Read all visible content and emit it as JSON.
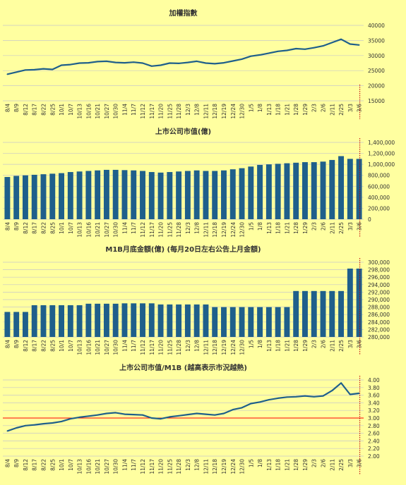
{
  "colors": {
    "background": "#ffffa0",
    "line": "#1f5f8b",
    "bar": "#1f5f8b",
    "grid": "#c8c8c8",
    "reference_line": "#ff0000",
    "event_line": "#c00000",
    "text": "#333333"
  },
  "x_tick_labels": [
    "8/4",
    "8/9",
    "8/12",
    "8/17",
    "8/22",
    "8/25",
    "10/1",
    "10/7",
    "10/13",
    "10/16",
    "10/21",
    "10/27",
    "10/30",
    "11/4",
    "11/7",
    "11/12",
    "11/17",
    "11/20",
    "11/25",
    "11/28",
    "12/3",
    "12/8",
    "12/11",
    "12/18",
    "12/19",
    "12/24",
    "12/30",
    "1/5",
    "1/8",
    "1/13",
    "1/18",
    "1/21",
    "1/28",
    "1/29",
    "2/3",
    "2/6",
    "2/11",
    "2/25",
    "3/3",
    "3/6"
  ],
  "chart_data": [
    {
      "type": "line",
      "title": "加權指數",
      "yticks": [
        "40000",
        "35000",
        "30000",
        "25000",
        "20000",
        "15000"
      ],
      "ylim": [
        15000,
        40000
      ],
      "grid": true,
      "x": [
        "8/4",
        "8/9",
        "8/12",
        "8/17",
        "8/22",
        "8/25",
        "10/1",
        "10/7",
        "10/13",
        "10/16",
        "10/21",
        "10/27",
        "10/30",
        "11/4",
        "11/7",
        "11/12",
        "11/17",
        "11/20",
        "11/25",
        "11/28",
        "12/3",
        "12/8",
        "12/11",
        "12/18",
        "12/19",
        "12/24",
        "12/30",
        "1/5",
        "1/8",
        "1/13",
        "1/18",
        "1/21",
        "1/28",
        "1/29",
        "2/3",
        "2/6",
        "2/11",
        "2/25",
        "3/3",
        "3/6"
      ],
      "values": [
        23800,
        24500,
        25200,
        25300,
        25600,
        25400,
        26800,
        27000,
        27500,
        27600,
        28000,
        28100,
        27700,
        27600,
        27800,
        27500,
        26500,
        26800,
        27500,
        27400,
        27700,
        28100,
        27500,
        27300,
        27600,
        28200,
        28800,
        29800,
        30200,
        30800,
        31400,
        31700,
        32300,
        32100,
        32600,
        33200,
        34300,
        35400,
        33800,
        33500
      ],
      "event_marker": "3/6"
    },
    {
      "type": "bar",
      "title": "上市公司市值(億)",
      "yticks": [
        "1,400,000",
        "1,200,000",
        "1,000,000",
        "800,000",
        "600,000",
        "400,000",
        "200,000",
        "0"
      ],
      "ylim": [
        0,
        1400000
      ],
      "grid": true,
      "categories": [
        "8/4",
        "8/9",
        "8/12",
        "8/17",
        "8/22",
        "8/25",
        "10/1",
        "10/7",
        "10/13",
        "10/16",
        "10/21",
        "10/27",
        "10/30",
        "11/4",
        "11/7",
        "11/12",
        "11/17",
        "11/20",
        "11/25",
        "11/28",
        "12/3",
        "12/8",
        "12/11",
        "12/18",
        "12/19",
        "12/24",
        "12/30",
        "1/5",
        "1/8",
        "1/13",
        "1/18",
        "1/21",
        "1/28",
        "1/29",
        "2/3",
        "2/6",
        "2/11",
        "2/25",
        "3/3",
        "3/6"
      ],
      "values": [
        770000,
        790000,
        800000,
        810000,
        820000,
        830000,
        840000,
        860000,
        870000,
        880000,
        890000,
        900000,
        900000,
        895000,
        890000,
        880000,
        860000,
        850000,
        860000,
        870000,
        880000,
        890000,
        880000,
        880000,
        890000,
        910000,
        930000,
        960000,
        990000,
        1000000,
        1010000,
        1020000,
        1030000,
        1040000,
        1040000,
        1050000,
        1080000,
        1150000,
        1100000,
        1100000
      ],
      "event_marker": "3/6"
    },
    {
      "type": "bar",
      "title": "M1B月底金額(億) (每月20日左右公告上月金額)",
      "yticks": [
        "300,000",
        "298,000",
        "296,000",
        "294,000",
        "292,000",
        "290,000",
        "288,000",
        "286,000",
        "284,000",
        "282,000",
        "280,000"
      ],
      "ylim": [
        280000,
        300000
      ],
      "grid": true,
      "categories": [
        "8/4",
        "8/9",
        "8/12",
        "8/17",
        "8/22",
        "8/25",
        "10/1",
        "10/7",
        "10/13",
        "10/16",
        "10/21",
        "10/27",
        "10/30",
        "11/4",
        "11/7",
        "11/12",
        "11/17",
        "11/20",
        "11/25",
        "11/28",
        "12/3",
        "12/8",
        "12/11",
        "12/18",
        "12/19",
        "12/24",
        "12/30",
        "1/5",
        "1/8",
        "1/13",
        "1/18",
        "1/21",
        "1/28",
        "1/29",
        "2/3",
        "2/6",
        "2/11",
        "2/25",
        "3/3",
        "3/6"
      ],
      "values": [
        286700,
        286700,
        286700,
        288500,
        288500,
        288500,
        288500,
        288500,
        288500,
        288900,
        288900,
        288900,
        288900,
        289000,
        289000,
        289000,
        289000,
        288700,
        288700,
        288700,
        288700,
        288700,
        288700,
        288000,
        288000,
        288000,
        288000,
        288000,
        288000,
        288000,
        288000,
        288000,
        292300,
        292300,
        292300,
        292300,
        292300,
        292300,
        298300,
        298300
      ],
      "event_marker": "3/6"
    },
    {
      "type": "line",
      "title": "上市公司市值/M1B (越高表示市況越熱)",
      "yticks": [
        "4.00",
        "3.80",
        "3.60",
        "3.40",
        "3.20",
        "3.00",
        "2.80",
        "2.60",
        "2.40",
        "2.20",
        "2.00"
      ],
      "ylim": [
        2.0,
        4.0
      ],
      "grid": true,
      "x": [
        "8/4",
        "8/9",
        "8/12",
        "8/17",
        "8/22",
        "8/25",
        "10/1",
        "10/7",
        "10/13",
        "10/16",
        "10/21",
        "10/27",
        "10/30",
        "11/4",
        "11/7",
        "11/12",
        "11/17",
        "11/20",
        "11/25",
        "11/28",
        "12/3",
        "12/8",
        "12/11",
        "12/18",
        "12/19",
        "12/24",
        "12/30",
        "1/5",
        "1/8",
        "1/13",
        "1/18",
        "1/21",
        "1/28",
        "1/29",
        "2/3",
        "2/6",
        "2/11",
        "2/25",
        "3/3",
        "3/6"
      ],
      "values": [
        2.66,
        2.74,
        2.8,
        2.82,
        2.85,
        2.87,
        2.91,
        2.98,
        3.02,
        3.05,
        3.08,
        3.12,
        3.14,
        3.1,
        3.09,
        3.08,
        3.0,
        2.98,
        3.03,
        3.06,
        3.09,
        3.12,
        3.1,
        3.08,
        3.12,
        3.22,
        3.27,
        3.38,
        3.42,
        3.48,
        3.52,
        3.55,
        3.56,
        3.58,
        3.56,
        3.58,
        3.72,
        3.92,
        3.62,
        3.65
      ],
      "reference_line": 3.0,
      "event_marker": "3/6"
    }
  ]
}
